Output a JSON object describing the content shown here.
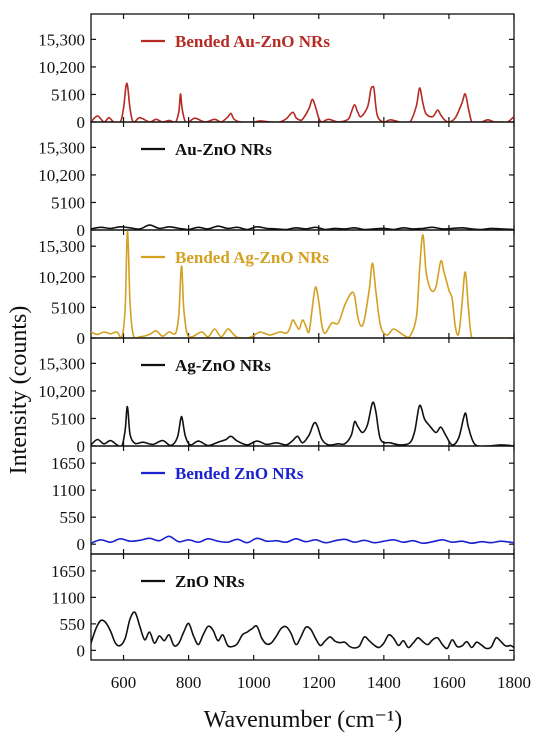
{
  "chart_data": {
    "type": "line",
    "xlabel": "Wavenumber (cm⁻¹)",
    "ylabel": "Intensity (counts)",
    "xlim": [
      500,
      1800
    ],
    "xticks": [
      "600",
      "800",
      "1000",
      "1200",
      "1400",
      "1600",
      "1800"
    ],
    "grid": false,
    "panels": [
      {
        "name": "Bended Au-ZnO NRs",
        "color": "#b52a22",
        "ylim": [
          0,
          20000
        ],
        "yticks": [
          "0",
          "5100",
          "10,200",
          "15,300"
        ],
        "ytick_values": [
          0,
          5100,
          10200,
          15300
        ],
        "x": [
          500,
          520,
          540,
          555,
          570,
          590,
          600,
          610,
          620,
          630,
          650,
          680,
          700,
          720,
          740,
          760,
          770,
          775,
          780,
          790,
          800,
          820,
          850,
          880,
          900,
          920,
          930,
          940,
          960,
          1000,
          1020,
          1050,
          1080,
          1100,
          1120,
          1130,
          1140,
          1150,
          1170,
          1180,
          1190,
          1200,
          1210,
          1230,
          1260,
          1290,
          1300,
          1310,
          1320,
          1330,
          1350,
          1360,
          1365,
          1370,
          1380,
          1400,
          1420,
          1450,
          1480,
          1500,
          1510,
          1520,
          1530,
          1550,
          1565,
          1575,
          1585,
          1600,
          1620,
          1640,
          1650,
          1660,
          1670,
          1680,
          1700,
          1720,
          1740,
          1760,
          1780,
          1800
        ],
        "y": [
          0,
          1100,
          0,
          800,
          0,
          0,
          2500,
          7200,
          2500,
          0,
          800,
          0,
          500,
          0,
          300,
          0,
          2000,
          5200,
          2500,
          0,
          0,
          700,
          0,
          500,
          0,
          900,
          1600,
          500,
          0,
          0,
          200,
          0,
          0,
          600,
          1800,
          800,
          400,
          500,
          2500,
          4200,
          2800,
          700,
          0,
          500,
          0,
          500,
          1800,
          3200,
          1800,
          1000,
          2800,
          6000,
          6500,
          6000,
          1200,
          0,
          400,
          0,
          0,
          3000,
          6300,
          3500,
          1500,
          1000,
          2200,
          1300,
          500,
          0,
          800,
          3500,
          5200,
          2500,
          0,
          0,
          0,
          400,
          0,
          0,
          0,
          1000
        ]
      },
      {
        "name": "Au-ZnO NRs",
        "color": "#111111",
        "ylim": [
          0,
          20000
        ],
        "yticks": [
          "0",
          "5100",
          "10,200",
          "15,300"
        ],
        "ytick_values": [
          0,
          5100,
          10200,
          15300
        ],
        "x": [
          500,
          530,
          560,
          590,
          620,
          650,
          680,
          710,
          740,
          770,
          800,
          830,
          860,
          890,
          920,
          950,
          980,
          1010,
          1040,
          1070,
          1100,
          1130,
          1160,
          1190,
          1220,
          1250,
          1280,
          1310,
          1340,
          1370,
          1400,
          1430,
          1460,
          1490,
          1520,
          1550,
          1580,
          1610,
          1640,
          1670,
          1700,
          1730,
          1760,
          1800
        ],
        "y": [
          200,
          500,
          300,
          600,
          400,
          200,
          900,
          300,
          600,
          300,
          100,
          500,
          200,
          700,
          300,
          500,
          100,
          600,
          300,
          200,
          100,
          400,
          200,
          500,
          100,
          300,
          200,
          400,
          100,
          200,
          300,
          100,
          400,
          200,
          300,
          500,
          200,
          300,
          400,
          200,
          100,
          300,
          200,
          100
        ]
      },
      {
        "name": "Bended Ag-ZnO NRs",
        "color": "#d4a020",
        "ylim": [
          0,
          18000
        ],
        "yticks": [
          "0",
          "5100",
          "10,200",
          "15,300"
        ],
        "ytick_values": [
          0,
          5100,
          10200,
          15300
        ],
        "x": [
          500,
          520,
          540,
          560,
          580,
          595,
          605,
          612,
          620,
          630,
          650,
          680,
          700,
          720,
          740,
          760,
          770,
          778,
          785,
          795,
          810,
          840,
          860,
          880,
          900,
          920,
          935,
          950,
          980,
          1000,
          1020,
          1050,
          1080,
          1100,
          1110,
          1120,
          1130,
          1140,
          1150,
          1160,
          1170,
          1180,
          1190,
          1200,
          1210,
          1220,
          1240,
          1260,
          1280,
          1300,
          1310,
          1320,
          1330,
          1340,
          1355,
          1365,
          1375,
          1390,
          1410,
          1430,
          1460,
          1480,
          1500,
          1510,
          1520,
          1530,
          1545,
          1560,
          1575,
          1585,
          1600,
          1610,
          1620,
          1630,
          1640,
          1650,
          1660,
          1670,
          1690,
          1720,
          1760,
          1800
        ],
        "y": [
          1000,
          600,
          1000,
          700,
          1000,
          200,
          5000,
          17800,
          6000,
          500,
          200,
          600,
          1200,
          300,
          1000,
          800,
          4000,
          12000,
          5000,
          800,
          200,
          1000,
          200,
          1500,
          200,
          1500,
          800,
          100,
          0,
          400,
          1000,
          500,
          1000,
          800,
          1500,
          3000,
          2200,
          1500,
          3000,
          2000,
          1000,
          5000,
          8500,
          6000,
          2000,
          800,
          2500,
          2500,
          5500,
          7500,
          7000,
          3500,
          2000,
          3000,
          8000,
          12500,
          8000,
          2000,
          500,
          1500,
          500,
          300,
          3500,
          11500,
          17200,
          11000,
          8000,
          8500,
          12800,
          11000,
          8000,
          6500,
          1800,
          700,
          5500,
          11000,
          5000,
          100,
          0,
          0,
          0,
          0
        ]
      },
      {
        "name": "Ag-ZnO NRs",
        "color": "#111111",
        "ylim": [
          0,
          20000
        ],
        "yticks": [
          "0",
          "5100",
          "10,200",
          "15,300"
        ],
        "ytick_values": [
          0,
          5100,
          10200,
          15300
        ],
        "x": [
          500,
          520,
          540,
          560,
          580,
          595,
          605,
          612,
          620,
          635,
          660,
          690,
          720,
          745,
          765,
          775,
          780,
          790,
          805,
          830,
          860,
          890,
          915,
          930,
          950,
          980,
          1010,
          1040,
          1070,
          1100,
          1120,
          1135,
          1150,
          1170,
          1185,
          1195,
          1210,
          1230,
          1260,
          1280,
          1300,
          1310,
          1320,
          1335,
          1350,
          1365,
          1375,
          1390,
          1420,
          1450,
          1480,
          1495,
          1510,
          1525,
          1540,
          1560,
          1575,
          1590,
          1610,
          1630,
          1645,
          1652,
          1660,
          1680,
          1720,
          1760,
          1800
        ],
        "y": [
          200,
          1200,
          400,
          1000,
          200,
          0,
          3000,
          7300,
          2200,
          500,
          700,
          300,
          1000,
          100,
          1500,
          4800,
          5200,
          1800,
          200,
          900,
          100,
          700,
          1200,
          1800,
          900,
          200,
          900,
          300,
          600,
          200,
          1000,
          1800,
          600,
          2000,
          4200,
          3800,
          1200,
          200,
          400,
          400,
          2000,
          4500,
          3600,
          2500,
          4000,
          8000,
          6500,
          1200,
          600,
          200,
          600,
          2800,
          7500,
          5000,
          3800,
          2500,
          3500,
          2000,
          200,
          1500,
          5200,
          6000,
          3500,
          300,
          0,
          200,
          0
        ]
      },
      {
        "name": "Bended ZnO NRs",
        "color": "#1a22d0",
        "ylim": [
          -200,
          2000
        ],
        "yticks": [
          "0",
          "550",
          "1100",
          "1650"
        ],
        "ytick_values": [
          0,
          550,
          1100,
          1650
        ],
        "x": [
          500,
          530,
          560,
          590,
          620,
          650,
          680,
          710,
          740,
          770,
          800,
          830,
          860,
          890,
          920,
          950,
          980,
          1010,
          1040,
          1070,
          1100,
          1130,
          1160,
          1190,
          1220,
          1250,
          1280,
          1310,
          1340,
          1370,
          1400,
          1430,
          1460,
          1490,
          1520,
          1550,
          1580,
          1610,
          1640,
          1670,
          1700,
          1730,
          1760,
          1800
        ],
        "y": [
          20,
          90,
          40,
          110,
          60,
          80,
          120,
          70,
          160,
          50,
          90,
          40,
          110,
          60,
          40,
          100,
          30,
          120,
          60,
          70,
          40,
          110,
          50,
          90,
          30,
          70,
          100,
          40,
          80,
          30,
          60,
          90,
          40,
          70,
          20,
          50,
          90,
          40,
          60,
          20,
          50,
          30,
          60,
          30
        ]
      },
      {
        "name": "ZnO NRs",
        "color": "#111111",
        "ylim": [
          -200,
          2000
        ],
        "yticks": [
          "0",
          "550",
          "1100",
          "1650"
        ],
        "ytick_values": [
          0,
          550,
          1100,
          1650
        ],
        "x": [
          500,
          515,
          530,
          545,
          560,
          575,
          590,
          605,
          620,
          635,
          650,
          665,
          680,
          695,
          710,
          725,
          740,
          755,
          770,
          785,
          800,
          815,
          830,
          845,
          860,
          875,
          890,
          905,
          920,
          935,
          950,
          965,
          980,
          995,
          1010,
          1025,
          1040,
          1055,
          1070,
          1085,
          1100,
          1115,
          1130,
          1145,
          1160,
          1175,
          1190,
          1205,
          1220,
          1235,
          1250,
          1265,
          1280,
          1295,
          1310,
          1325,
          1340,
          1355,
          1370,
          1385,
          1400,
          1415,
          1430,
          1445,
          1460,
          1475,
          1490,
          1505,
          1520,
          1535,
          1550,
          1565,
          1580,
          1595,
          1610,
          1625,
          1640,
          1655,
          1670,
          1685,
          1700,
          1715,
          1730,
          1745,
          1760,
          1775,
          1790,
          1800
        ],
        "y": [
          150,
          450,
          620,
          580,
          400,
          150,
          100,
          250,
          650,
          790,
          500,
          220,
          380,
          150,
          300,
          200,
          320,
          100,
          150,
          380,
          560,
          300,
          120,
          330,
          500,
          420,
          200,
          320,
          100,
          80,
          140,
          320,
          380,
          450,
          500,
          250,
          130,
          160,
          300,
          460,
          490,
          350,
          120,
          280,
          480,
          440,
          250,
          100,
          200,
          280,
          190,
          160,
          170,
          80,
          50,
          90,
          280,
          200,
          110,
          60,
          150,
          320,
          250,
          100,
          200,
          60,
          150,
          260,
          180,
          120,
          220,
          260,
          120,
          40,
          220,
          80,
          90,
          180,
          60,
          170,
          110,
          40,
          70,
          260,
          180,
          90,
          100,
          60
        ]
      }
    ]
  }
}
